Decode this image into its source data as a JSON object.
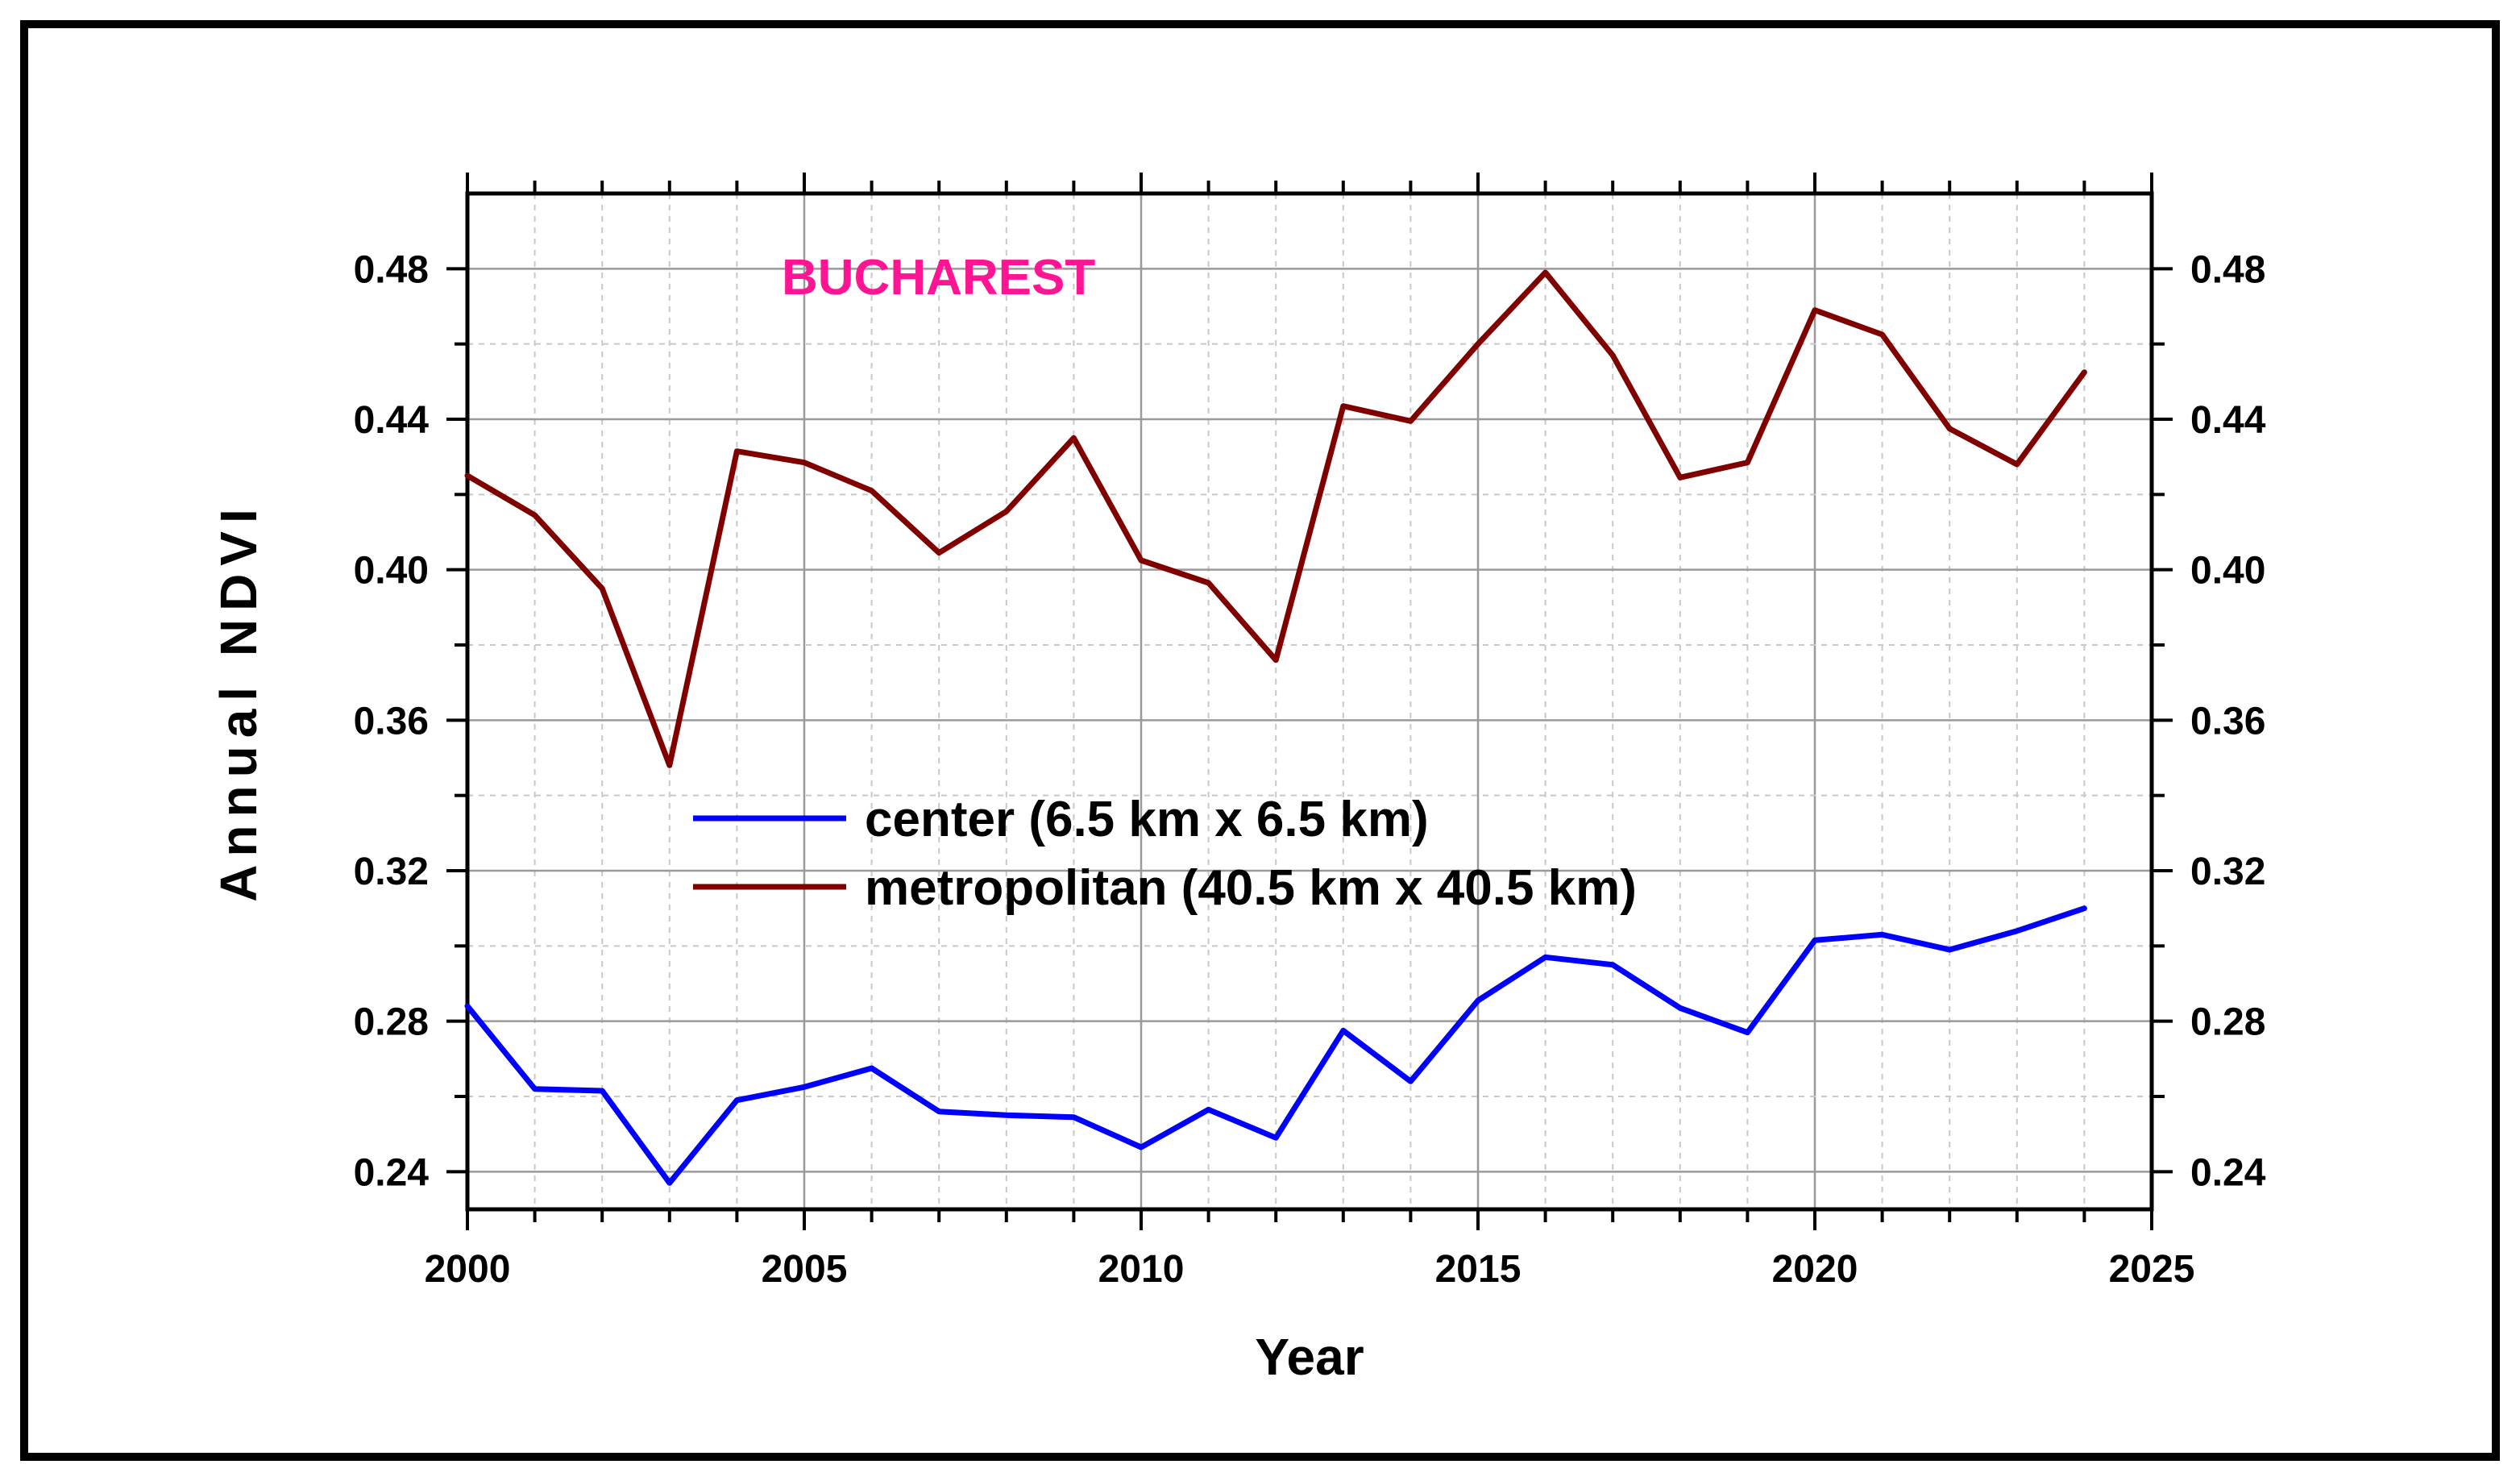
{
  "chart_data": {
    "type": "line",
    "title": "",
    "annotation": "BUCHAREST",
    "xlabel": "Year",
    "ylabel": "Annual  NDVI",
    "xlim": [
      2000,
      2025
    ],
    "ylim": [
      0.23,
      0.5
    ],
    "x_ticks": [
      "2000",
      "2005",
      "2010",
      "2015",
      "2020",
      "2025"
    ],
    "y_ticks": [
      "0.24",
      "0.28",
      "0.32",
      "0.36",
      "0.40",
      "0.44",
      "0.48"
    ],
    "grid": true,
    "secondary_y_axis": true,
    "legend_position": "center",
    "x": [
      2000,
      2001,
      2002,
      2003,
      2004,
      2005,
      2006,
      2007,
      2008,
      2009,
      2010,
      2011,
      2012,
      2013,
      2014,
      2015,
      2016,
      2017,
      2018,
      2019,
      2020,
      2021,
      2022,
      2023,
      2024
    ],
    "series": [
      {
        "name": "center (6.5 km x 6.5 km)",
        "color": "#0000ff",
        "values": [
          0.284,
          0.262,
          0.2615,
          0.237,
          0.259,
          0.2625,
          0.2675,
          0.256,
          0.255,
          0.2545,
          0.2465,
          0.2565,
          0.249,
          0.2775,
          0.264,
          0.2855,
          0.297,
          0.295,
          0.2835,
          0.277,
          0.3015,
          0.303,
          0.299,
          0.304,
          0.31
        ]
      },
      {
        "name": "metropolitan (40.5 km x 40.5 km)",
        "color": "#800000",
        "values": [
          0.425,
          0.4145,
          0.395,
          0.348,
          0.4315,
          0.4285,
          0.421,
          0.4045,
          0.4155,
          0.435,
          0.4025,
          0.3965,
          0.376,
          0.4435,
          0.4395,
          0.46,
          0.479,
          0.457,
          0.4245,
          0.4285,
          0.469,
          0.4625,
          0.4375,
          0.428,
          0.4525
        ]
      }
    ],
    "annotation_color": "#ff1493"
  }
}
